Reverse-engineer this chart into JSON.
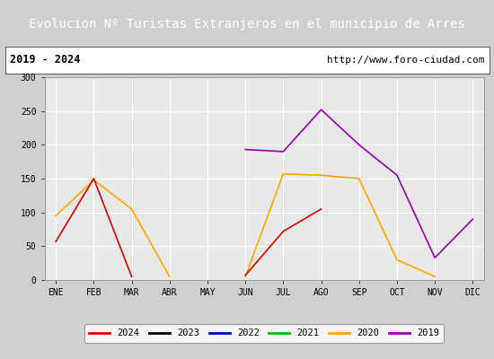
{
  "title": "Evolucion Nº Turistas Extranjeros en el municipio de Arres",
  "subtitle_left": "2019 - 2024",
  "subtitle_right": "http://www.foro-ciudad.com",
  "months": [
    "ENE",
    "FEB",
    "MAR",
    "ABR",
    "MAY",
    "JUN",
    "JUL",
    "AGO",
    "SEP",
    "OCT",
    "NOV",
    "DIC"
  ],
  "ylim": [
    0,
    300
  ],
  "yticks": [
    0,
    50,
    100,
    150,
    200,
    250,
    300
  ],
  "series": {
    "2024": {
      "color": "#dd0000",
      "data": [
        57,
        150,
        5,
        null,
        null,
        7,
        72,
        105,
        null,
        null,
        null,
        null
      ]
    },
    "2023": {
      "color": "#000000",
      "data": [
        null,
        null,
        null,
        null,
        null,
        null,
        null,
        null,
        null,
        null,
        null,
        null
      ]
    },
    "2022": {
      "color": "#0000cc",
      "data": [
        null,
        null,
        null,
        null,
        null,
        null,
        null,
        null,
        null,
        null,
        null,
        null
      ]
    },
    "2021": {
      "color": "#00bb00",
      "data": [
        null,
        null,
        null,
        null,
        null,
        null,
        null,
        null,
        null,
        null,
        null,
        null
      ]
    },
    "2020": {
      "color": "#ffa500",
      "data": [
        95,
        148,
        105,
        5,
        null,
        5,
        157,
        155,
        150,
        30,
        5,
        null
      ]
    },
    "2019": {
      "color": "#9900aa",
      "data": [
        null,
        null,
        null,
        null,
        null,
        193,
        190,
        252,
        200,
        155,
        33,
        90
      ]
    }
  },
  "legend_order": [
    "2024",
    "2023",
    "2022",
    "2021",
    "2020",
    "2019"
  ],
  "title_bg_color": "#5b9bd5",
  "title_text_color": "#ffffff",
  "subtitle_bg_color": "#ffffff",
  "plot_bg_color": "#e8e8e8",
  "fig_bg_color": "#d0d0d0",
  "outer_border_color": "#4a7ab5"
}
